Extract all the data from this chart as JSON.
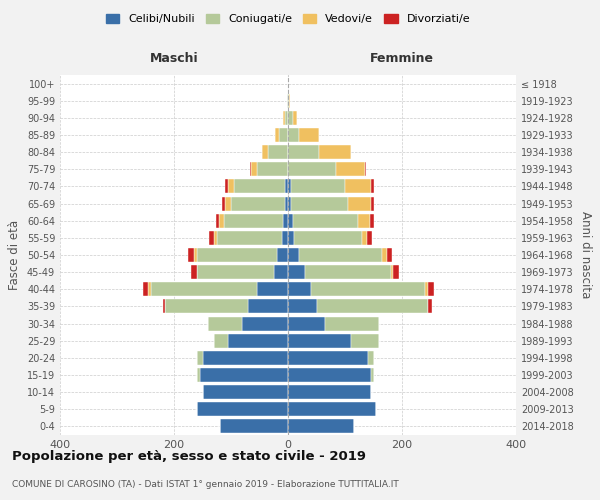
{
  "age_groups": [
    "0-4",
    "5-9",
    "10-14",
    "15-19",
    "20-24",
    "25-29",
    "30-34",
    "35-39",
    "40-44",
    "45-49",
    "50-54",
    "55-59",
    "60-64",
    "65-69",
    "70-74",
    "75-79",
    "80-84",
    "85-89",
    "90-94",
    "95-99",
    "100+"
  ],
  "birth_years": [
    "2014-2018",
    "2009-2013",
    "2004-2008",
    "1999-2003",
    "1994-1998",
    "1989-1993",
    "1984-1988",
    "1979-1983",
    "1974-1978",
    "1969-1973",
    "1964-1968",
    "1959-1963",
    "1954-1958",
    "1949-1953",
    "1944-1948",
    "1939-1943",
    "1934-1938",
    "1929-1933",
    "1924-1928",
    "1919-1923",
    "≤ 1918"
  ],
  "males": {
    "celibi": [
      120,
      160,
      150,
      155,
      150,
      105,
      80,
      70,
      55,
      25,
      20,
      10,
      8,
      5,
      5,
      0,
      0,
      0,
      0,
      0,
      0
    ],
    "coniugati": [
      0,
      0,
      0,
      5,
      10,
      25,
      60,
      145,
      185,
      135,
      140,
      115,
      105,
      95,
      90,
      55,
      35,
      15,
      5,
      2,
      0
    ],
    "vedovi": [
      0,
      0,
      0,
      0,
      0,
      0,
      0,
      0,
      5,
      0,
      5,
      5,
      8,
      10,
      10,
      10,
      10,
      8,
      3,
      0,
      0
    ],
    "divorziati": [
      0,
      0,
      0,
      0,
      0,
      0,
      0,
      5,
      10,
      10,
      10,
      8,
      5,
      5,
      5,
      2,
      0,
      0,
      0,
      0,
      0
    ]
  },
  "females": {
    "nubili": [
      115,
      155,
      145,
      145,
      140,
      110,
      65,
      50,
      40,
      30,
      20,
      10,
      8,
      5,
      5,
      0,
      0,
      0,
      0,
      0,
      0
    ],
    "coniugate": [
      0,
      0,
      0,
      5,
      10,
      50,
      95,
      195,
      200,
      150,
      145,
      120,
      115,
      100,
      95,
      85,
      55,
      20,
      8,
      2,
      0
    ],
    "vedove": [
      0,
      0,
      0,
      0,
      0,
      0,
      0,
      0,
      5,
      5,
      8,
      8,
      20,
      40,
      45,
      50,
      55,
      35,
      8,
      2,
      0
    ],
    "divorziate": [
      0,
      0,
      0,
      0,
      0,
      0,
      0,
      8,
      12,
      10,
      10,
      10,
      8,
      5,
      5,
      2,
      0,
      0,
      0,
      0,
      0
    ]
  },
  "colors": {
    "celibi_nubili": "#3a6fa8",
    "coniugati_e": "#b5c99a",
    "vedovi_e": "#f0c060",
    "divorziati_e": "#cc2222"
  },
  "title": "Popolazione per età, sesso e stato civile - 2019",
  "subtitle": "COMUNE DI CAROSINO (TA) - Dati ISTAT 1° gennaio 2019 - Elaborazione TUTTITALIA.IT",
  "xlabel_left": "Maschi",
  "xlabel_right": "Femmine",
  "ylabel_left": "Fasce di età",
  "ylabel_right": "Anni di nascita",
  "xlim": 400,
  "legend_labels": [
    "Celibi/Nubili",
    "Coniugati/e",
    "Vedovi/e",
    "Divorziati/e"
  ],
  "bg_color": "#f2f2f2",
  "plot_bg": "#ffffff"
}
